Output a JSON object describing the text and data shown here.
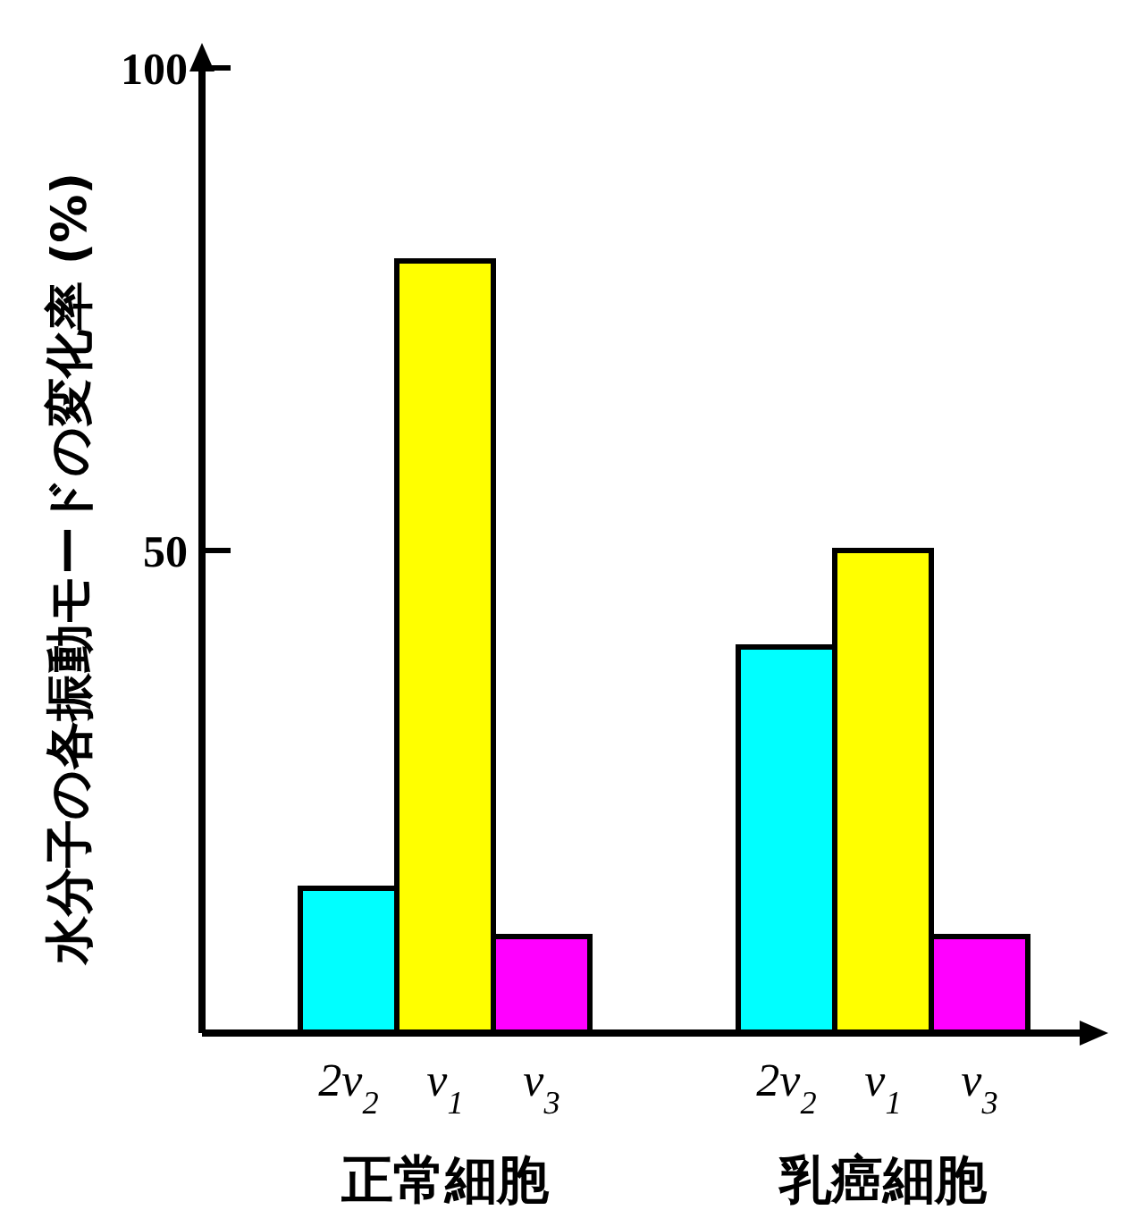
{
  "chart_data": {
    "type": "bar",
    "ylabel": "水分子の各振動モードの変化率 (%)",
    "categories": [
      "正常細胞",
      "乳癌細胞"
    ],
    "series": [
      {
        "name": "2ν$_{2}$",
        "color": "#00ffff",
        "values": [
          15,
          40
        ]
      },
      {
        "name": "ν$_{1}$",
        "color": "#ffff00",
        "values": [
          80,
          50
        ]
      },
      {
        "name": "ν$_{3}$",
        "color": "#ff00ff",
        "values": [
          10,
          10
        ]
      }
    ],
    "ylim": [
      0,
      100
    ],
    "yticks": [
      50,
      100
    ],
    "grid": false
  }
}
